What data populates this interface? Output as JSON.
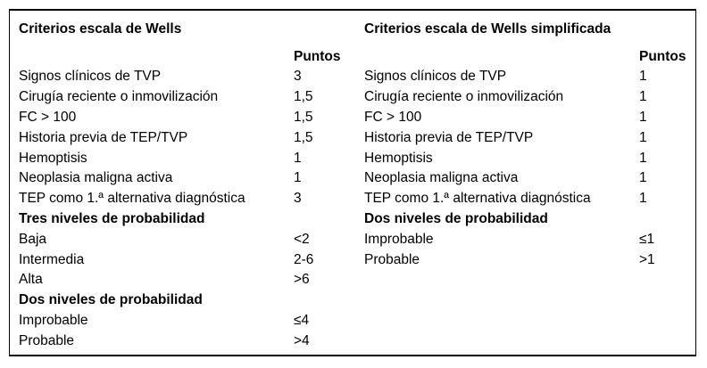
{
  "page": {
    "background": "#ffffff",
    "text_color": "#000000",
    "rule_color": "#000000"
  },
  "tables": [
    {
      "title": "Criterios escala de Wells",
      "points_header": "Puntos",
      "rows": [
        {
          "label": "Signos clínicos de TVP",
          "value": "3",
          "bold": false
        },
        {
          "label": "Cirugía reciente o inmovilización",
          "value": "1,5",
          "bold": false
        },
        {
          "label": "FC > 100",
          "value": "1,5",
          "bold": false
        },
        {
          "label": "Historia previa de TEP/TVP",
          "value": "1,5",
          "bold": false
        },
        {
          "label": "Hemoptisis",
          "value": "1",
          "bold": false
        },
        {
          "label": "Neoplasia maligna activa",
          "value": "1",
          "bold": false
        },
        {
          "label": "TEP como 1.ª alternativa diagnóstica",
          "value": "3",
          "bold": false
        },
        {
          "label": "Tres niveles de probabilidad",
          "value": "",
          "bold": true
        },
        {
          "label": "Baja",
          "value": "<2",
          "bold": false
        },
        {
          "label": "Intermedia",
          "value": "2-6",
          "bold": false
        },
        {
          "label": "Alta",
          "value": ">6",
          "bold": false
        },
        {
          "label": "Dos niveles de probabilidad",
          "value": "",
          "bold": true
        },
        {
          "label": "Improbable",
          "value": "≤4",
          "bold": false
        },
        {
          "label": "Probable",
          "value": ">4",
          "bold": false
        }
      ]
    },
    {
      "title": "Criterios escala de Wells simplificada",
      "points_header": "Puntos",
      "rows": [
        {
          "label": "Signos clínicos de TVP",
          "value": "1",
          "bold": false
        },
        {
          "label": "Cirugía reciente o inmovilización",
          "value": "1",
          "bold": false
        },
        {
          "label": "FC > 100",
          "value": "1",
          "bold": false
        },
        {
          "label": "Historia previa de TEP/TVP",
          "value": "1",
          "bold": false
        },
        {
          "label": "Hemoptisis",
          "value": "1",
          "bold": false
        },
        {
          "label": "Neoplasia maligna activa",
          "value": "1",
          "bold": false
        },
        {
          "label": "TEP como 1.ª alternativa diagnóstica",
          "value": "1",
          "bold": false
        },
        {
          "label": "Dos niveles de probabilidad",
          "value": "",
          "bold": true
        },
        {
          "label": "Improbable",
          "value": "≤1",
          "bold": false
        },
        {
          "label": "Probable",
          "value": ">1",
          "bold": false
        }
      ]
    }
  ]
}
